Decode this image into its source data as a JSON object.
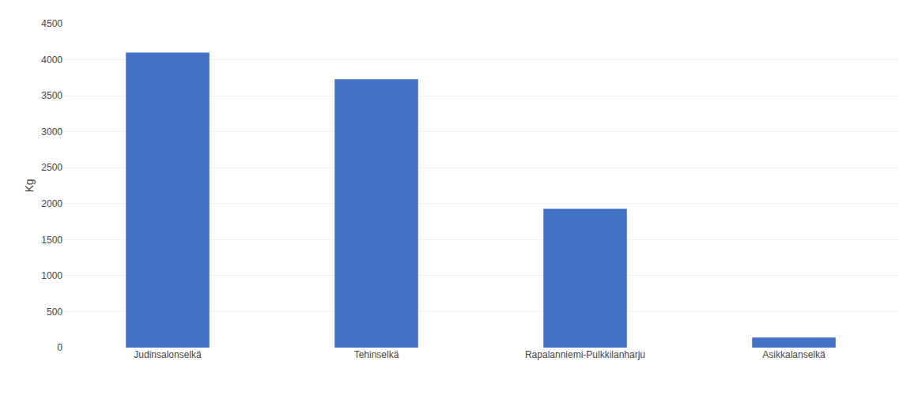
{
  "chart_data": {
    "type": "bar",
    "ylabel": "Kg",
    "categories": [
      "Judinsalonselkä",
      "Tehinselkä",
      "Rapalanniemi-Pulkkilanharju",
      "Asikkalanselkä"
    ],
    "values": [
      4100,
      3730,
      1930,
      140
    ],
    "color": "#4472C4",
    "ylim": [
      0,
      4500
    ],
    "yticks": [
      0,
      500,
      1000,
      1500,
      2000,
      2500,
      3000,
      3500,
      4000,
      4500
    ],
    "grid": true
  }
}
